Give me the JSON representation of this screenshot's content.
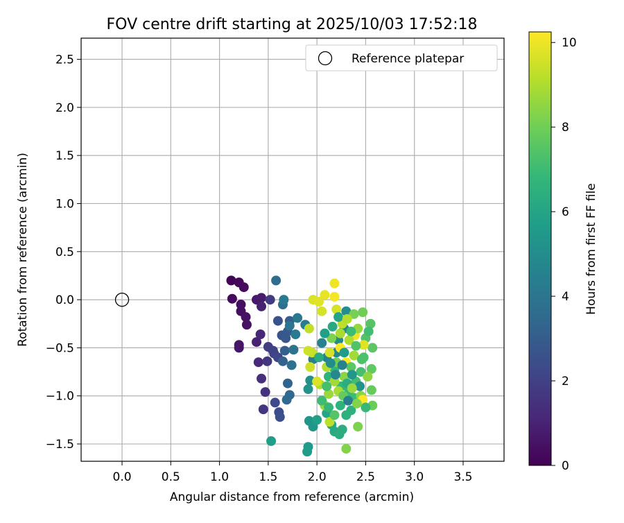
{
  "chart_data": {
    "type": "scatter",
    "title": "FOV centre drift starting at 2025/10/03 17:52:18",
    "xlabel": "Angular distance from reference (arcmin)",
    "ylabel": "Rotation from reference (arcmin)",
    "xlim": [
      -0.42,
      3.92
    ],
    "ylim": [
      -1.68,
      2.72
    ],
    "x_ticks": [
      0.0,
      0.5,
      1.0,
      1.5,
      2.0,
      2.5,
      3.0,
      3.5
    ],
    "x_tick_labels": [
      "0.0",
      "0.5",
      "1.0",
      "1.5",
      "2.0",
      "2.5",
      "3.0",
      "3.5"
    ],
    "y_ticks": [
      -1.5,
      -1.0,
      -0.5,
      0.0,
      0.5,
      1.0,
      1.5,
      2.0,
      2.5
    ],
    "y_tick_labels": [
      "−1.5",
      "−1.0",
      "−0.5",
      "0.0",
      "0.5",
      "1.0",
      "1.5",
      "2.0",
      "2.5"
    ],
    "grid": true,
    "legend": {
      "placement": "top-right",
      "entries": [
        "Reference platepar"
      ]
    },
    "reference_point": {
      "x": 0.0,
      "y": 0.0,
      "name": "Reference platepar"
    },
    "colorbar": {
      "label": "Hours from first FF file",
      "colormap": "viridis",
      "range": [
        0,
        10.25
      ],
      "ticks": [
        0,
        2,
        4,
        6,
        8,
        10
      ],
      "tick_labels": [
        "0",
        "2",
        "4",
        "6",
        "8",
        "10"
      ],
      "stops": [
        "#440154",
        "#482878",
        "#3e4989",
        "#31688e",
        "#26828e",
        "#1f9e89",
        "#35b779",
        "#6ece58",
        "#b5de2b",
        "#fde725"
      ]
    },
    "points": [
      [
        1.12,
        0.2,
        0.1
      ],
      [
        1.2,
        0.18,
        0.2
      ],
      [
        1.25,
        0.13,
        0.3
      ],
      [
        1.13,
        0.01,
        0.3
      ],
      [
        1.22,
        -0.05,
        0.4
      ],
      [
        1.22,
        -0.12,
        0.4
      ],
      [
        1.27,
        -0.18,
        0.5
      ],
      [
        1.28,
        -0.26,
        0.5
      ],
      [
        1.2,
        -0.47,
        0.6
      ],
      [
        1.2,
        -0.5,
        0.6
      ],
      [
        1.38,
        0.0,
        0.7
      ],
      [
        1.43,
        0.02,
        0.8
      ],
      [
        1.43,
        -0.07,
        0.9
      ],
      [
        1.38,
        -0.44,
        1.0
      ],
      [
        1.42,
        -0.36,
        1.1
      ],
      [
        1.4,
        -0.65,
        1.2
      ],
      [
        1.43,
        -0.82,
        1.4
      ],
      [
        1.47,
        -0.96,
        1.5
      ],
      [
        1.45,
        -1.14,
        1.6
      ],
      [
        1.49,
        -0.64,
        1.7
      ],
      [
        1.52,
        0.0,
        1.8
      ],
      [
        1.5,
        -0.49,
        1.9
      ],
      [
        1.55,
        -0.53,
        2.0
      ],
      [
        1.56,
        -0.56,
        2.1
      ],
      [
        1.6,
        -0.6,
        2.2
      ],
      [
        1.57,
        -1.07,
        2.3
      ],
      [
        1.61,
        -1.17,
        2.4
      ],
      [
        1.62,
        -1.22,
        2.5
      ],
      [
        1.6,
        -0.22,
        2.6
      ],
      [
        1.64,
        -0.37,
        2.7
      ],
      [
        1.68,
        -0.4,
        2.8
      ],
      [
        1.7,
        -0.33,
        2.9
      ],
      [
        1.72,
        -0.22,
        3.0
      ],
      [
        1.67,
        -0.53,
        3.1
      ],
      [
        1.65,
        -0.64,
        3.2
      ],
      [
        1.7,
        -0.87,
        3.3
      ],
      [
        1.72,
        -0.99,
        3.4
      ],
      [
        1.69,
        -1.04,
        3.5
      ],
      [
        1.58,
        0.2,
        3.6
      ],
      [
        1.65,
        -0.05,
        3.7
      ],
      [
        1.74,
        -0.68,
        3.8
      ],
      [
        1.76,
        -0.52,
        3.9
      ],
      [
        1.72,
        -0.27,
        4.0
      ],
      [
        1.8,
        -0.19,
        4.1
      ],
      [
        1.78,
        -0.36,
        4.2
      ],
      [
        1.66,
        0.0,
        4.2
      ],
      [
        1.88,
        -0.26,
        4.3
      ],
      [
        1.96,
        -0.62,
        4.4
      ],
      [
        2.05,
        -0.45,
        4.5
      ],
      [
        2.1,
        -0.6,
        4.6
      ],
      [
        2.2,
        -0.55,
        4.7
      ],
      [
        2.28,
        -0.3,
        4.8
      ],
      [
        2.22,
        -0.42,
        4.9
      ],
      [
        2.3,
        -0.12,
        5.0
      ],
      [
        1.93,
        -0.84,
        5.1
      ],
      [
        1.91,
        -0.93,
        5.2
      ],
      [
        1.92,
        -1.26,
        5.3
      ],
      [
        1.96,
        -1.32,
        5.4
      ],
      [
        1.91,
        -1.53,
        5.5
      ],
      [
        1.9,
        -1.58,
        5.6
      ],
      [
        1.53,
        -1.47,
        5.7
      ],
      [
        2.0,
        -1.25,
        5.8
      ],
      [
        2.05,
        -1.05,
        5.9
      ],
      [
        2.1,
        -1.18,
        6.0
      ],
      [
        2.15,
        -1.3,
        6.1
      ],
      [
        2.18,
        -1.37,
        6.2
      ],
      [
        2.23,
        -1.4,
        6.3
      ],
      [
        2.26,
        -1.35,
        6.4
      ],
      [
        2.3,
        -1.2,
        6.5
      ],
      [
        2.35,
        -1.15,
        6.5
      ],
      [
        2.12,
        -0.8,
        6.6
      ],
      [
        2.18,
        -0.72,
        6.7
      ],
      [
        2.25,
        -0.9,
        6.8
      ],
      [
        2.33,
        -0.95,
        6.9
      ],
      [
        2.38,
        -1.02,
        7.0
      ],
      [
        2.4,
        -0.85,
        7.1
      ],
      [
        2.45,
        -0.75,
        7.2
      ],
      [
        2.48,
        -0.6,
        7.3
      ],
      [
        2.5,
        -0.4,
        7.4
      ],
      [
        2.55,
        -0.25,
        7.5
      ],
      [
        2.57,
        -0.5,
        7.6
      ],
      [
        2.56,
        -0.72,
        7.7
      ],
      [
        2.56,
        -0.94,
        7.8
      ],
      [
        2.57,
        -1.1,
        7.9
      ],
      [
        2.47,
        -0.13,
        8.0
      ],
      [
        2.38,
        -0.15,
        8.1
      ],
      [
        2.42,
        -1.32,
        8.2
      ],
      [
        2.3,
        -1.55,
        8.3
      ],
      [
        2.45,
        -1.0,
        8.4
      ],
      [
        2.52,
        -0.8,
        8.5
      ],
      [
        2.08,
        -1.1,
        8.6
      ],
      [
        2.12,
        -0.98,
        8.7
      ],
      [
        2.18,
        -0.85,
        8.8
      ],
      [
        2.22,
        -0.95,
        8.9
      ],
      [
        2.03,
        -0.88,
        9.0
      ],
      [
        2.1,
        -0.7,
        9.1
      ],
      [
        2.13,
        -1.27,
        9.2
      ],
      [
        1.92,
        -0.3,
        9.3
      ],
      [
        1.95,
        -0.55,
        9.4
      ],
      [
        1.91,
        -0.53,
        9.5
      ],
      [
        2.05,
        -0.12,
        9.6
      ],
      [
        1.96,
        0.0,
        9.7
      ],
      [
        2.02,
        -0.02,
        9.8
      ],
      [
        2.08,
        0.05,
        9.9
      ],
      [
        2.18,
        0.17,
        10.0
      ],
      [
        2.18,
        0.03,
        10.1
      ],
      [
        2.24,
        -0.5,
        10.2
      ],
      [
        2.3,
        -0.65,
        10.2
      ],
      [
        2.47,
        -1.04,
        10.2
      ],
      [
        2.39,
        -0.37,
        10.0
      ],
      [
        2.48,
        -0.47,
        9.8
      ],
      [
        2.13,
        -0.55,
        9.6
      ],
      [
        1.93,
        -0.7,
        9.5
      ],
      [
        2.0,
        -0.85,
        9.7
      ],
      [
        2.2,
        -0.1,
        9.6
      ],
      [
        2.26,
        -0.25,
        9.2
      ],
      [
        2.33,
        -0.42,
        9.0
      ],
      [
        2.38,
        -0.58,
        8.8
      ],
      [
        2.42,
        -0.3,
        8.6
      ],
      [
        2.28,
        -0.8,
        8.4
      ],
      [
        2.15,
        -0.4,
        8.2
      ],
      [
        2.2,
        -0.65,
        8.0
      ],
      [
        2.27,
        -1.0,
        7.8
      ],
      [
        2.35,
        -0.7,
        7.6
      ],
      [
        2.4,
        -0.48,
        7.4
      ],
      [
        2.1,
        -0.9,
        7.2
      ],
      [
        2.05,
        -1.05,
        7.0
      ],
      [
        2.12,
        -1.12,
        6.8
      ],
      [
        2.24,
        -1.1,
        6.6
      ],
      [
        2.31,
        -0.87,
        6.4
      ],
      [
        2.16,
        -0.28,
        6.2
      ],
      [
        2.22,
        -0.18,
        6.0
      ],
      [
        2.08,
        -0.35,
        5.8
      ],
      [
        2.28,
        -0.55,
        5.6
      ],
      [
        2.36,
        -0.78,
        5.4
      ],
      [
        2.44,
        -0.9,
        5.2
      ],
      [
        2.14,
        -0.66,
        5.0
      ],
      [
        2.19,
        -0.78,
        4.8
      ],
      [
        2.26,
        -0.68,
        4.6
      ],
      [
        2.32,
        -1.05,
        4.4
      ],
      [
        2.35,
        -0.33,
        7.0
      ],
      [
        2.46,
        -0.62,
        7.3
      ],
      [
        2.5,
        -1.12,
        6.9
      ],
      [
        2.53,
        -0.33,
        7.1
      ],
      [
        2.02,
        -0.6,
        6.3
      ],
      [
        2.24,
        -0.35,
        8.9
      ],
      [
        2.31,
        -0.2,
        9.1
      ],
      [
        2.36,
        -0.92,
        8.7
      ],
      [
        2.41,
        -1.08,
        8.3
      ],
      [
        2.18,
        -1.2,
        7.5
      ]
    ]
  }
}
